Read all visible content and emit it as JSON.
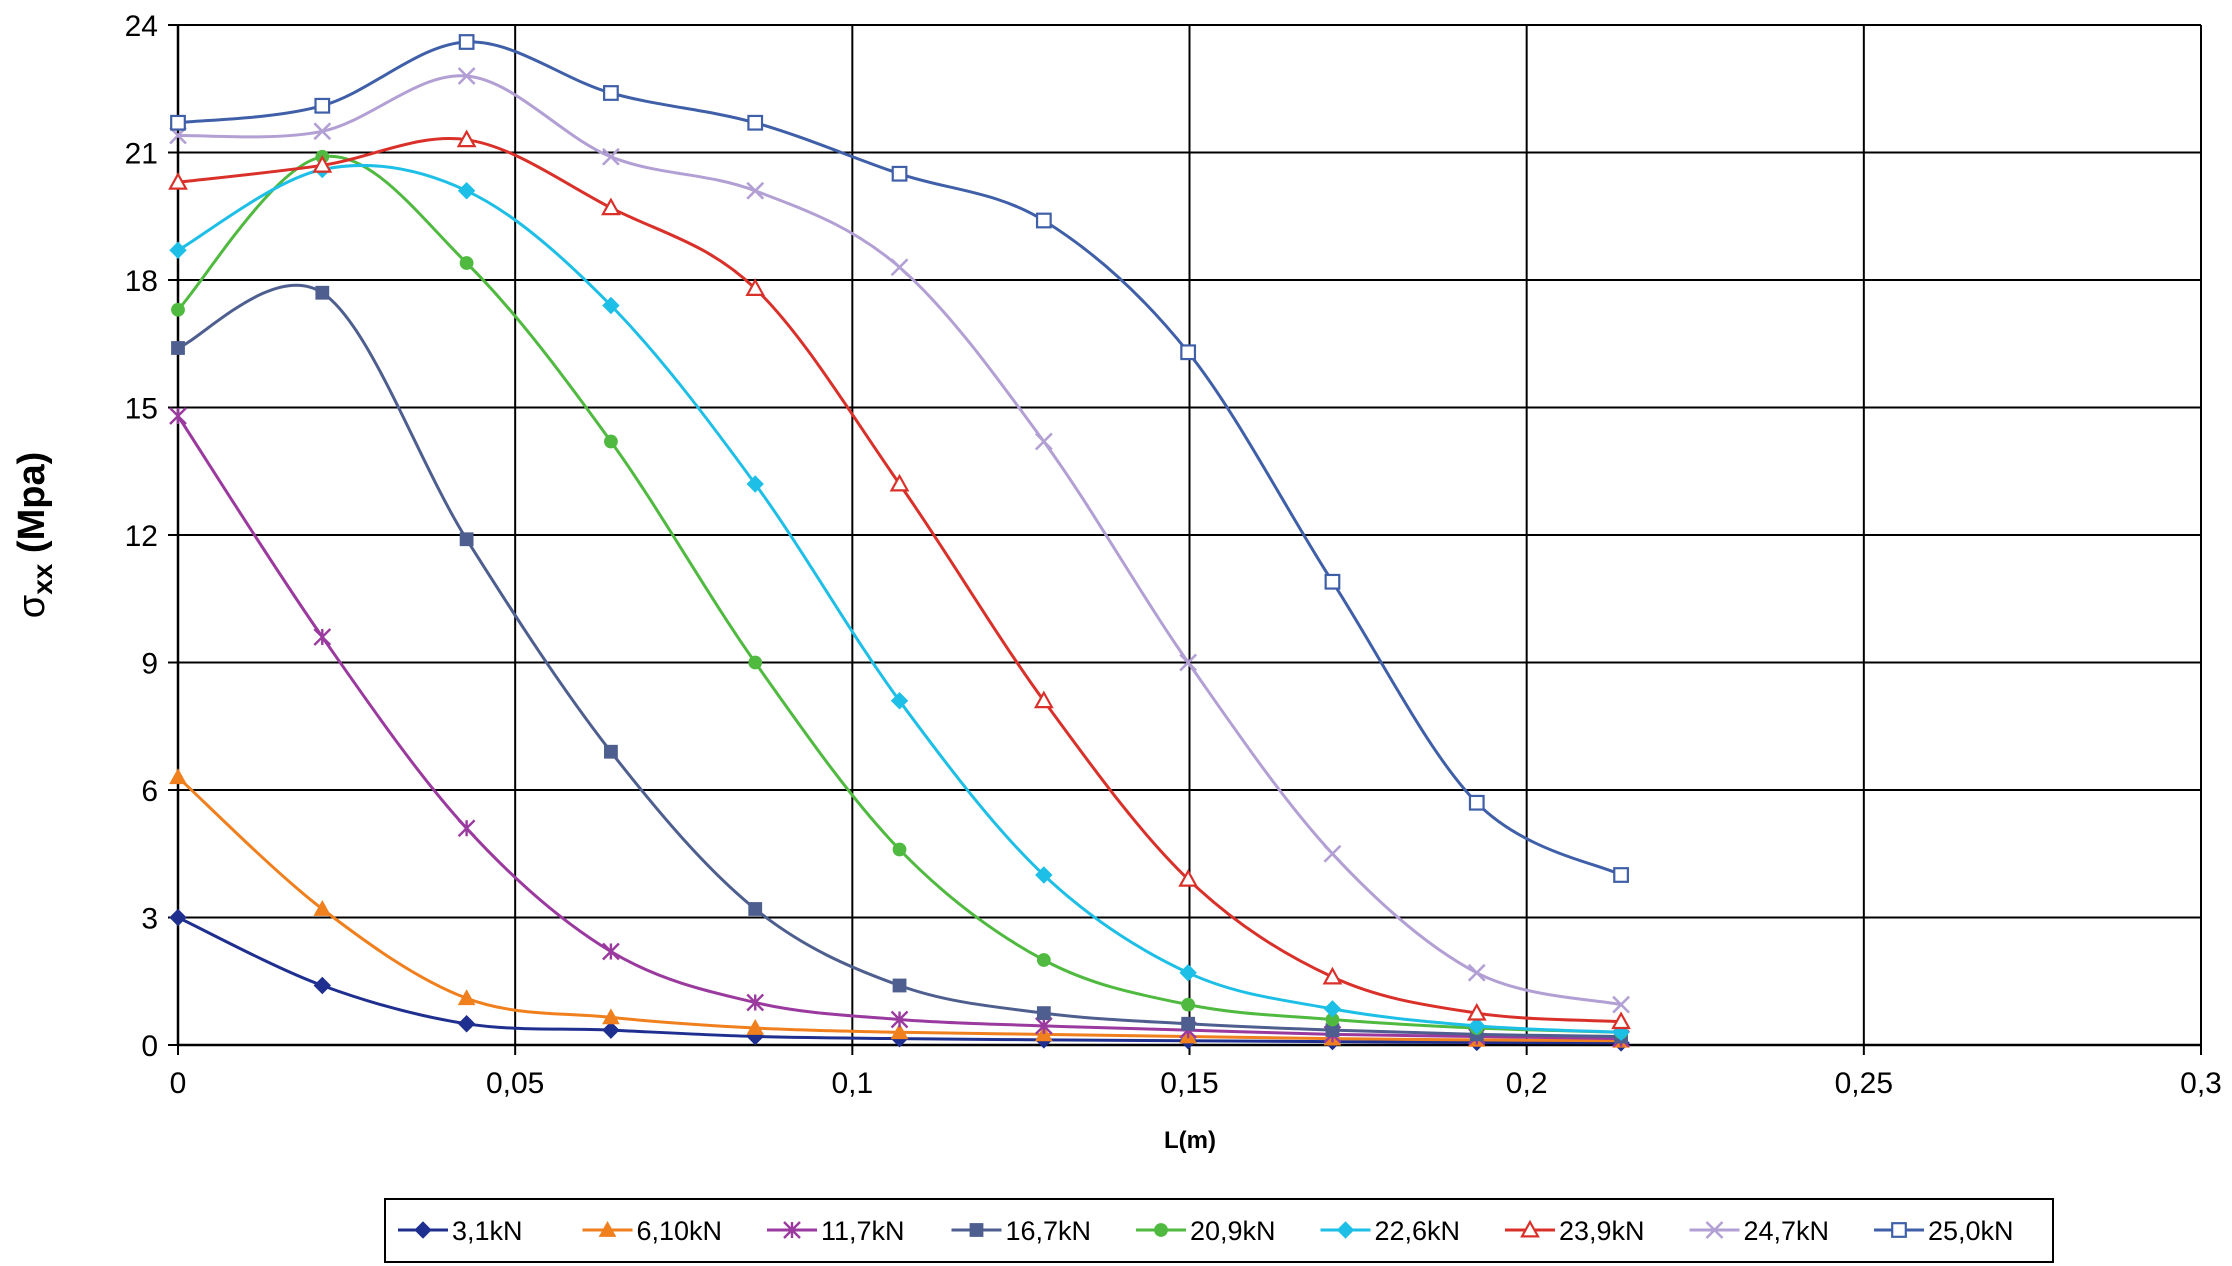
{
  "chart_data": {
    "type": "line",
    "title": "",
    "xlabel": "L(m)",
    "ylabel_main": "σ",
    "ylabel_sub": "xx",
    "ylabel_unit": " (Mpa)",
    "xlim": [
      0,
      0.3
    ],
    "ylim": [
      0,
      24
    ],
    "xticks": [
      0,
      0.05,
      0.1,
      0.15,
      0.2,
      0.25,
      0.3
    ],
    "xtick_labels": [
      "0",
      "0,05",
      "0,1",
      "0,15",
      "0,2",
      "0,25",
      "0,3"
    ],
    "yticks": [
      0,
      3,
      6,
      9,
      12,
      15,
      18,
      21,
      24
    ],
    "ytick_labels": [
      "0",
      "3",
      "6",
      "9",
      "12",
      "15",
      "18",
      "21",
      "24"
    ],
    "grid": true,
    "legend_position": "bottom",
    "x": [
      0,
      0.0214,
      0.0428,
      0.0642,
      0.0856,
      0.107,
      0.1284,
      0.1498,
      0.1712,
      0.1926,
      0.214
    ],
    "series": [
      {
        "name": "3,1kN",
        "color": "#1f2f8f",
        "marker": "diamond",
        "values": [
          3.0,
          1.4,
          0.5,
          0.35,
          0.2,
          0.15,
          0.12,
          0.1,
          0.08,
          0.06,
          0.05
        ]
      },
      {
        "name": "6,10kN",
        "color": "#f07f1e",
        "marker": "triangle",
        "values": [
          6.3,
          3.2,
          1.1,
          0.65,
          0.4,
          0.3,
          0.25,
          0.2,
          0.15,
          0.12,
          0.1
        ]
      },
      {
        "name": "11,7kN",
        "color": "#9b3a9e",
        "marker": "star",
        "values": [
          14.8,
          9.6,
          5.1,
          2.2,
          1.0,
          0.6,
          0.45,
          0.35,
          0.25,
          0.2,
          0.15
        ]
      },
      {
        "name": "16,7kN",
        "color": "#4e5f8f",
        "marker": "square",
        "values": [
          16.4,
          17.7,
          11.9,
          6.9,
          3.2,
          1.4,
          0.75,
          0.5,
          0.35,
          0.25,
          0.2
        ]
      },
      {
        "name": "20,9kN",
        "color": "#4fba3f",
        "marker": "circle",
        "values": [
          17.3,
          20.9,
          18.4,
          14.2,
          9.0,
          4.6,
          2.0,
          0.95,
          0.6,
          0.4,
          0.3
        ]
      },
      {
        "name": "22,6kN",
        "color": "#1ebfe6",
        "marker": "diamond",
        "values": [
          18.7,
          20.6,
          20.1,
          17.4,
          13.2,
          8.1,
          4.0,
          1.7,
          0.85,
          0.45,
          0.3
        ]
      },
      {
        "name": "23,9kN",
        "color": "#d9312a",
        "marker": "triangle-open",
        "values": [
          20.3,
          20.7,
          21.3,
          19.7,
          17.8,
          13.2,
          8.1,
          3.9,
          1.6,
          0.75,
          0.55
        ]
      },
      {
        "name": "24,7kN",
        "color": "#b29fd4",
        "marker": "x",
        "values": [
          21.4,
          21.5,
          22.8,
          20.9,
          20.1,
          18.3,
          14.2,
          9.0,
          4.5,
          1.7,
          0.95
        ]
      },
      {
        "name": "25,0kN",
        "color": "#3f5fa8",
        "marker": "square-open",
        "values": [
          21.7,
          22.1,
          23.6,
          22.4,
          21.7,
          20.5,
          19.4,
          16.3,
          10.9,
          5.7,
          4.0
        ]
      }
    ]
  }
}
